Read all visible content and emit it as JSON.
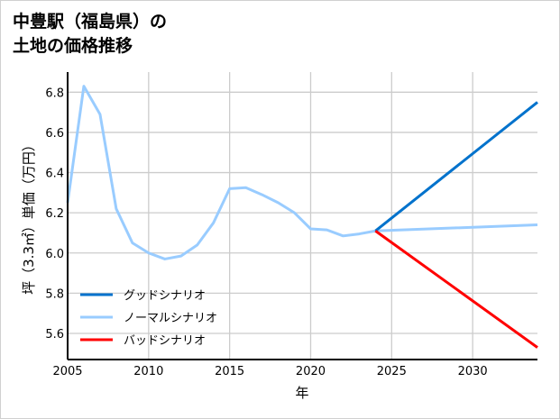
{
  "title_lines": [
    "中豊駅（福島県）の",
    "土地の価格推移"
  ],
  "chart_data": {
    "type": "line",
    "title": "中豊駅（福島県）の土地の価格推移",
    "xlabel": "年",
    "ylabel": "坪（3.3㎡）単価（万円）",
    "xlim": [
      2005,
      2034
    ],
    "ylim": [
      5.47,
      6.9
    ],
    "xticks": [
      2005,
      2010,
      2015,
      2020,
      2025,
      2030
    ],
    "yticks": [
      5.6,
      5.8,
      6.0,
      6.2,
      6.4,
      6.6,
      6.8
    ],
    "grid": true,
    "legend_position": "bottom-left",
    "series": [
      {
        "name": "グッドシナリオ",
        "color": "#0072cc",
        "x": [
          2024,
          2034
        ],
        "y": [
          6.11,
          6.75
        ]
      },
      {
        "name": "ノーマルシナリオ",
        "color": "#99ccff",
        "x": [
          2005,
          2006,
          2007,
          2008,
          2009,
          2010,
          2011,
          2012,
          2013,
          2014,
          2015,
          2016,
          2017,
          2018,
          2019,
          2020,
          2021,
          2022,
          2023,
          2024,
          2034
        ],
        "y": [
          6.25,
          6.83,
          6.69,
          6.22,
          6.05,
          6.0,
          5.97,
          5.985,
          6.04,
          6.15,
          6.32,
          6.325,
          6.29,
          6.25,
          6.2,
          6.12,
          6.115,
          6.085,
          6.095,
          6.11,
          6.14
        ]
      },
      {
        "name": "バッドシナリオ",
        "color": "#ff0000",
        "x": [
          2024,
          2034
        ],
        "y": [
          6.11,
          5.53
        ]
      }
    ]
  }
}
